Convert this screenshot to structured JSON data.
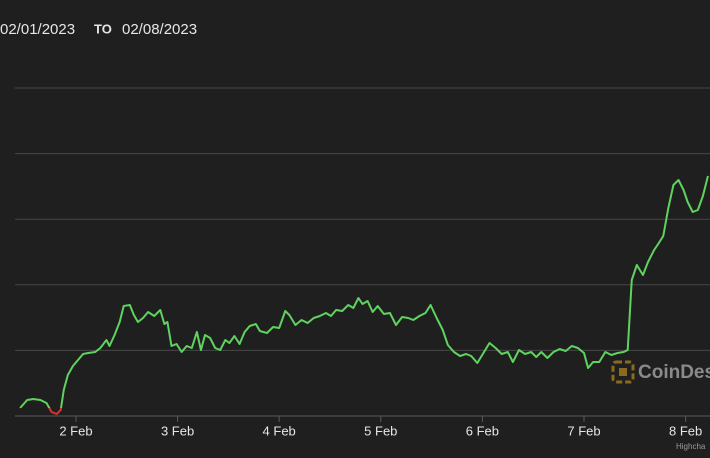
{
  "header": {
    "from": "02/01/2023",
    "to_label": "TO",
    "to": "02/08/2023"
  },
  "chart_data": {
    "type": "line",
    "x": [
      1.45,
      1.52,
      1.58,
      1.65,
      1.71,
      1.76,
      1.81,
      1.85,
      1.88,
      1.92,
      1.97,
      2.02,
      2.07,
      2.12,
      2.19,
      2.24,
      2.3,
      2.33,
      2.38,
      2.43,
      2.47,
      2.53,
      2.57,
      2.61,
      2.66,
      2.71,
      2.77,
      2.83,
      2.87,
      2.9,
      2.94,
      2.99,
      3.04,
      3.09,
      3.14,
      3.19,
      3.23,
      3.27,
      3.32,
      3.37,
      3.42,
      3.47,
      3.51,
      3.56,
      3.61,
      3.66,
      3.71,
      3.77,
      3.81,
      3.88,
      3.94,
      4.0,
      4.06,
      4.1,
      4.16,
      4.22,
      4.28,
      4.34,
      4.4,
      4.46,
      4.51,
      4.56,
      4.62,
      4.68,
      4.73,
      4.78,
      4.82,
      4.87,
      4.92,
      4.97,
      5.03,
      5.09,
      5.15,
      5.21,
      5.27,
      5.32,
      5.38,
      5.44,
      5.49,
      5.55,
      5.61,
      5.66,
      5.72,
      5.78,
      5.84,
      5.89,
      5.95,
      6.01,
      6.07,
      6.13,
      6.19,
      6.25,
      6.3,
      6.36,
      6.42,
      6.48,
      6.53,
      6.58,
      6.64,
      6.7,
      6.76,
      6.82,
      6.88,
      6.94,
      7.0,
      7.04,
      7.09,
      7.15,
      7.21,
      7.27,
      7.33,
      7.39,
      7.43,
      7.47,
      7.52,
      7.58,
      7.63,
      7.69,
      7.73,
      7.78,
      7.83,
      7.88,
      7.93,
      7.98,
      8.02,
      8.07,
      8.12,
      8.17,
      8.22
    ],
    "series": [
      {
        "color": "#5ed35e",
        "negative_color": "#e0302c",
        "threshold": 8,
        "values": [
          8,
          16,
          17,
          16,
          13,
          4,
          2,
          6,
          26,
          41,
          50,
          56,
          62,
          63,
          64,
          68,
          76,
          70,
          81,
          94,
          110,
          111,
          101,
          94,
          98,
          104,
          100,
          106,
          92,
          94,
          70,
          72,
          64,
          70,
          68,
          84,
          66,
          81,
          78,
          68,
          66,
          76,
          73,
          80,
          72,
          84,
          90,
          92,
          85,
          83,
          89,
          88,
          105,
          101,
          91,
          96,
          93,
          98,
          100,
          103,
          100,
          106,
          105,
          111,
          108,
          118,
          112,
          115,
          104,
          110,
          102,
          103,
          91,
          99,
          98,
          96,
          100,
          103,
          111,
          98,
          86,
          71,
          64,
          60,
          62,
          60,
          53,
          63,
          73,
          68,
          62,
          64,
          54,
          66,
          62,
          64,
          59,
          64,
          58,
          64,
          67,
          65,
          70,
          68,
          63,
          48,
          54,
          54,
          64,
          61,
          63,
          64,
          66,
          136,
          151,
          141,
          154,
          166,
          172,
          180,
          208,
          231,
          236,
          226,
          214,
          204,
          206,
          220,
          240
        ]
      }
    ],
    "xlim": [
      1.4,
      8.24
    ],
    "xticks": [
      {
        "value": 2,
        "label": "2 Feb"
      },
      {
        "value": 3,
        "label": "3 Feb"
      },
      {
        "value": 4,
        "label": "4 Feb"
      },
      {
        "value": 5,
        "label": "5 Feb"
      },
      {
        "value": 6,
        "label": "6 Feb"
      },
      {
        "value": 7,
        "label": "7 Feb"
      },
      {
        "value": 8,
        "label": "8 Feb"
      }
    ],
    "ylim": [
      0,
      328
    ],
    "yticks": [
      0,
      65.6,
      131.2,
      196.8,
      262.4,
      328
    ],
    "grid": true,
    "watermark": "CoinDes",
    "credits": "Highcha"
  }
}
